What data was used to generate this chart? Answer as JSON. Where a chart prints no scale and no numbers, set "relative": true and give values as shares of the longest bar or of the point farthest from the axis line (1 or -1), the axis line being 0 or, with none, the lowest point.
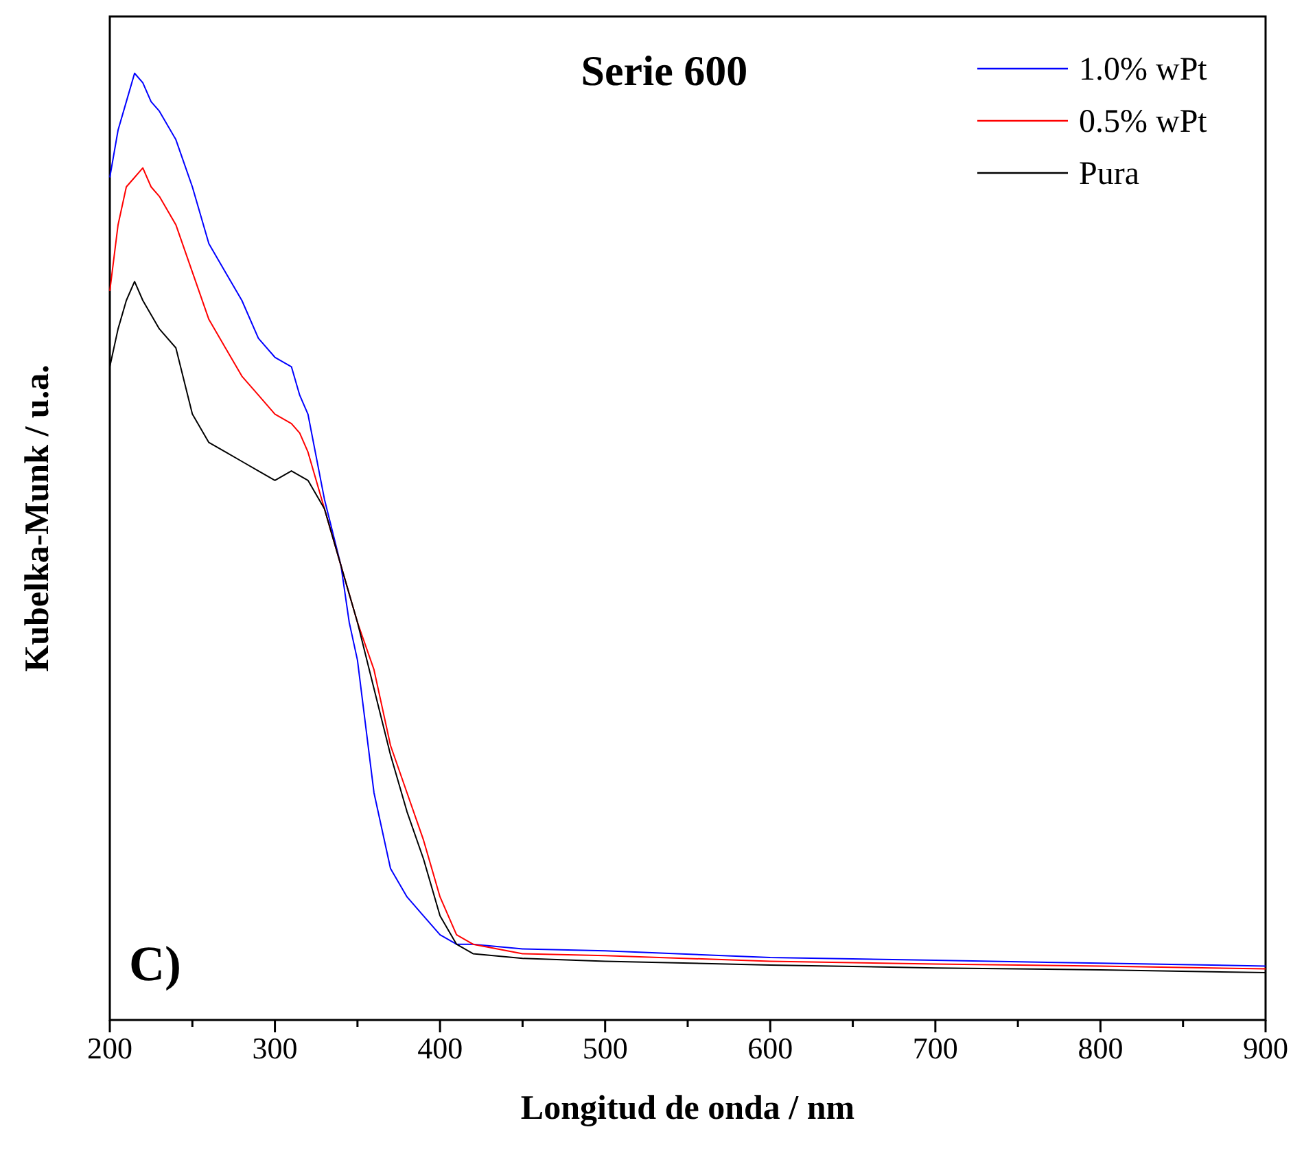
{
  "chart_data": {
    "type": "line",
    "title": "Serie 600",
    "xlabel": "Longitud de onda / nm",
    "ylabel": "Kubelka-Munk / u.a.",
    "relative": true,
    "legend": "top right",
    "grid": false,
    "annotations": [
      "C)"
    ],
    "xlim": [
      200,
      900
    ],
    "xticks": [
      200,
      {
        "value": 250,
        "label": null
      },
      300,
      {
        "value": 350,
        "label": null
      },
      400,
      {
        "value": 450,
        "label": null
      },
      500,
      {
        "value": 550,
        "label": null
      },
      600,
      {
        "value": 650,
        "label": null
      },
      700,
      {
        "value": 750,
        "label": null
      },
      800,
      {
        "value": 850,
        "label": null
      },
      900
    ],
    "series": [
      {
        "name": "1.0% wPt",
        "color": "#0000ff",
        "x": [
          200,
          205,
          210,
          215,
          220,
          225,
          230,
          240,
          250,
          260,
          270,
          280,
          290,
          300,
          310,
          315,
          320,
          330,
          340,
          345,
          350,
          355,
          360,
          370,
          380,
          390,
          400,
          410,
          420,
          450,
          500,
          600,
          700,
          800,
          900
        ],
        "values": [
          0.89,
          0.94,
          0.97,
          1.0,
          0.99,
          0.97,
          0.96,
          0.93,
          0.88,
          0.82,
          0.79,
          0.76,
          0.72,
          0.7,
          0.69,
          0.66,
          0.64,
          0.55,
          0.48,
          0.42,
          0.38,
          0.31,
          0.24,
          0.16,
          0.13,
          0.11,
          0.09,
          0.08,
          0.08,
          0.075,
          0.073,
          0.066,
          0.063,
          0.06,
          0.057
        ]
      },
      {
        "name": "0.5% wPt",
        "color": "#ff0000",
        "x": [
          200,
          205,
          210,
          215,
          220,
          225,
          230,
          240,
          250,
          260,
          270,
          280,
          290,
          300,
          310,
          315,
          320,
          330,
          340,
          350,
          360,
          370,
          380,
          390,
          400,
          410,
          420,
          450,
          500,
          600,
          700,
          800,
          900
        ],
        "values": [
          0.77,
          0.84,
          0.88,
          0.89,
          0.9,
          0.88,
          0.87,
          0.84,
          0.79,
          0.74,
          0.71,
          0.68,
          0.66,
          0.64,
          0.63,
          0.62,
          0.6,
          0.54,
          0.48,
          0.42,
          0.37,
          0.29,
          0.24,
          0.19,
          0.13,
          0.09,
          0.08,
          0.07,
          0.068,
          0.062,
          0.059,
          0.057,
          0.054
        ]
      },
      {
        "name": "Pura",
        "color": "#000000",
        "x": [
          200,
          205,
          210,
          215,
          220,
          230,
          240,
          250,
          260,
          270,
          280,
          290,
          300,
          310,
          320,
          330,
          340,
          350,
          360,
          370,
          380,
          390,
          400,
          410,
          420,
          450,
          500,
          600,
          700,
          800,
          900
        ],
        "values": [
          0.69,
          0.73,
          0.76,
          0.78,
          0.76,
          0.73,
          0.71,
          0.64,
          0.61,
          0.6,
          0.59,
          0.58,
          0.57,
          0.58,
          0.57,
          0.54,
          0.48,
          0.42,
          0.35,
          0.28,
          0.22,
          0.17,
          0.11,
          0.08,
          0.07,
          0.065,
          0.062,
          0.058,
          0.055,
          0.053,
          0.05
        ]
      }
    ]
  }
}
